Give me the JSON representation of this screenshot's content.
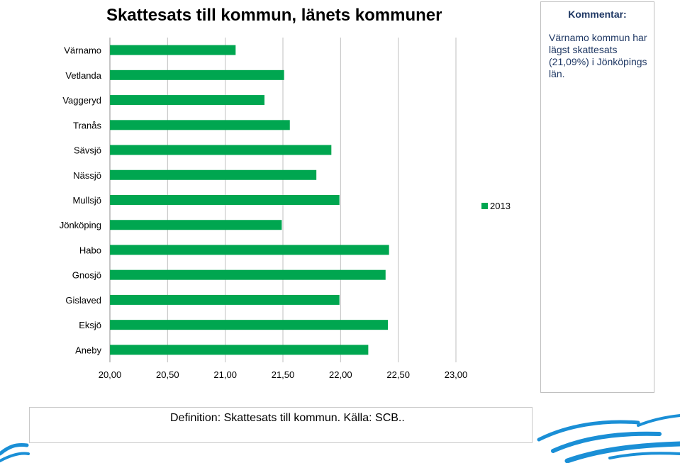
{
  "chart_data": {
    "type": "bar",
    "orientation": "horizontal",
    "title": "Skattesats till kommun, länets kommuner",
    "categories": [
      "Värnamo",
      "Vetlanda",
      "Vaggeryd",
      "Tranås",
      "Sävsjö",
      "Nässjö",
      "Mullsjö",
      "Jönköping",
      "Habo",
      "Gnosjö",
      "Gislaved",
      "Eksjö",
      "Aneby"
    ],
    "series": [
      {
        "name": "2013",
        "values": [
          21.09,
          21.51,
          21.34,
          21.56,
          21.92,
          21.79,
          21.99,
          21.49,
          22.42,
          22.39,
          21.99,
          22.41,
          22.24
        ]
      }
    ],
    "xlim": [
      20.0,
      23.0
    ],
    "xticks": [
      "20,00",
      "20,50",
      "21,00",
      "21,50",
      "22,00",
      "22,50",
      "23,00"
    ],
    "xtick_values": [
      20.0,
      20.5,
      21.0,
      21.5,
      22.0,
      22.5,
      23.0
    ],
    "grid": "vertical",
    "legend": "right",
    "bar_color": "#00a650"
  },
  "comment": {
    "heading": "Kommentar:",
    "text": "Värnamo kommun har lägst skattesats (21,09%) i Jönköpings län."
  },
  "definition": {
    "label": "Definition:",
    "text": "Skattesats till kommun. Källa: SCB.."
  },
  "colors": {
    "bar": "#00a650",
    "wave": "#1a8fd6",
    "text_accent": "#1f3864"
  }
}
